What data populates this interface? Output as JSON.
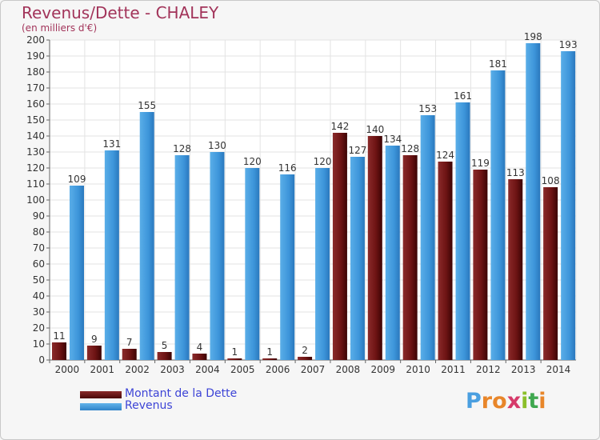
{
  "header": {
    "title": "Revenus/Dette - CHALEY",
    "subtitle": "(en milliers d'€)"
  },
  "legend": {
    "items": [
      {
        "label": "Montant de la Dette",
        "color": "#7a1a1a"
      },
      {
        "label": "Revenus",
        "color": "#4a9fe0"
      }
    ]
  },
  "brand": {
    "text": "Proxiti",
    "letter_colors": [
      "#4a9fe0",
      "#e8862a",
      "#e8862a",
      "#d63a6a",
      "#8bbf2a",
      "#3fa84f",
      "#e8862a"
    ]
  },
  "chart_data": {
    "type": "bar",
    "title": "Revenus/Dette - CHALEY",
    "subtitle": "(en milliers d'€)",
    "xlabel": "",
    "ylabel": "",
    "ylim": [
      0,
      200
    ],
    "yticks": [
      0,
      10,
      20,
      30,
      40,
      50,
      60,
      70,
      80,
      90,
      100,
      110,
      120,
      130,
      140,
      150,
      160,
      170,
      180,
      190,
      200
    ],
    "grid": true,
    "legend_position": "bottom-left",
    "categories": [
      "2000",
      "2001",
      "2002",
      "2003",
      "2004",
      "2005",
      "2006",
      "2007",
      "2008",
      "2009",
      "2010",
      "2011",
      "2012",
      "2013",
      "2014"
    ],
    "series": [
      {
        "name": "Montant de la Dette",
        "color": "#7a1a1a",
        "values": [
          11,
          9,
          7,
          5,
          4,
          1,
          1,
          2,
          142,
          140,
          128,
          124,
          119,
          113,
          108
        ]
      },
      {
        "name": "Revenus",
        "color": "#4a9fe0",
        "values": [
          109,
          131,
          155,
          128,
          130,
          120,
          116,
          120,
          127,
          134,
          153,
          161,
          181,
          198,
          193
        ]
      }
    ]
  }
}
